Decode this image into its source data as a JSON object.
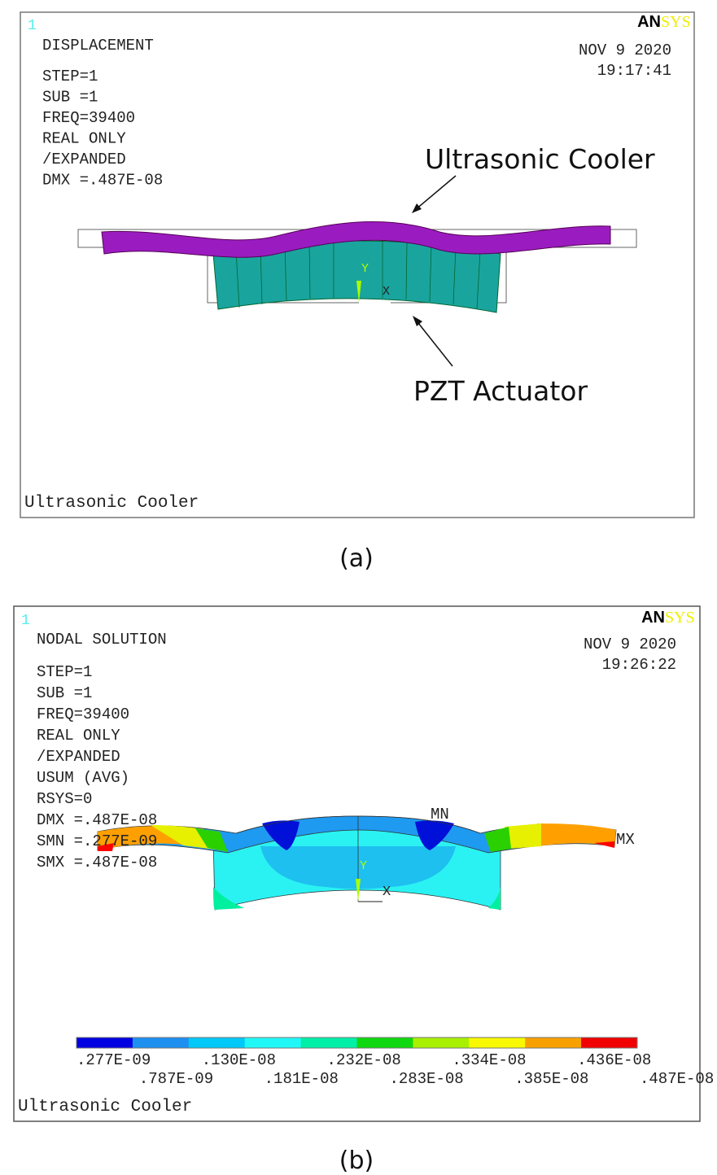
{
  "panels": [
    {
      "window_number": "1",
      "logo_an": "AN",
      "logo_sys": "SYS",
      "header_line": "DISPLACEMENT",
      "info_lines": [
        "STEP=1",
        "SUB =1",
        "FREQ=39400",
        "REAL ONLY",
        "/EXPANDED",
        "DMX =.487E-08"
      ],
      "date": "NOV  9 2020",
      "time": "19:17:41",
      "axis_y": "Y",
      "axis_x": "X",
      "annotations": [
        "Ultrasonic Cooler",
        "PZT Actuator"
      ],
      "footer": "Ultrasonic Cooler",
      "caption": "(a)"
    },
    {
      "window_number": "1",
      "logo_an": "AN",
      "logo_sys": "SYS",
      "header_line": "NODAL SOLUTION",
      "info_lines": [
        "STEP=1",
        "SUB =1",
        "FREQ=39400",
        "REAL ONLY",
        "/EXPANDED",
        "USUM     (AVG)",
        "RSYS=0",
        "DMX =.487E-08",
        "SMN =.277E-09",
        "SMX =.487E-08"
      ],
      "date": "NOV  9 2020",
      "time": "19:26:22",
      "axis_y": "Y",
      "axis_x": "X",
      "min_label": "MN",
      "max_label": "MX",
      "legend_labels": [
        ".277E-09",
        ".787E-09",
        ".130E-08",
        ".181E-08",
        ".232E-08",
        ".283E-08",
        ".334E-08",
        ".385E-08",
        ".436E-08",
        ".487E-08"
      ],
      "footer": "Ultrasonic Cooler",
      "caption": "(b)"
    }
  ]
}
